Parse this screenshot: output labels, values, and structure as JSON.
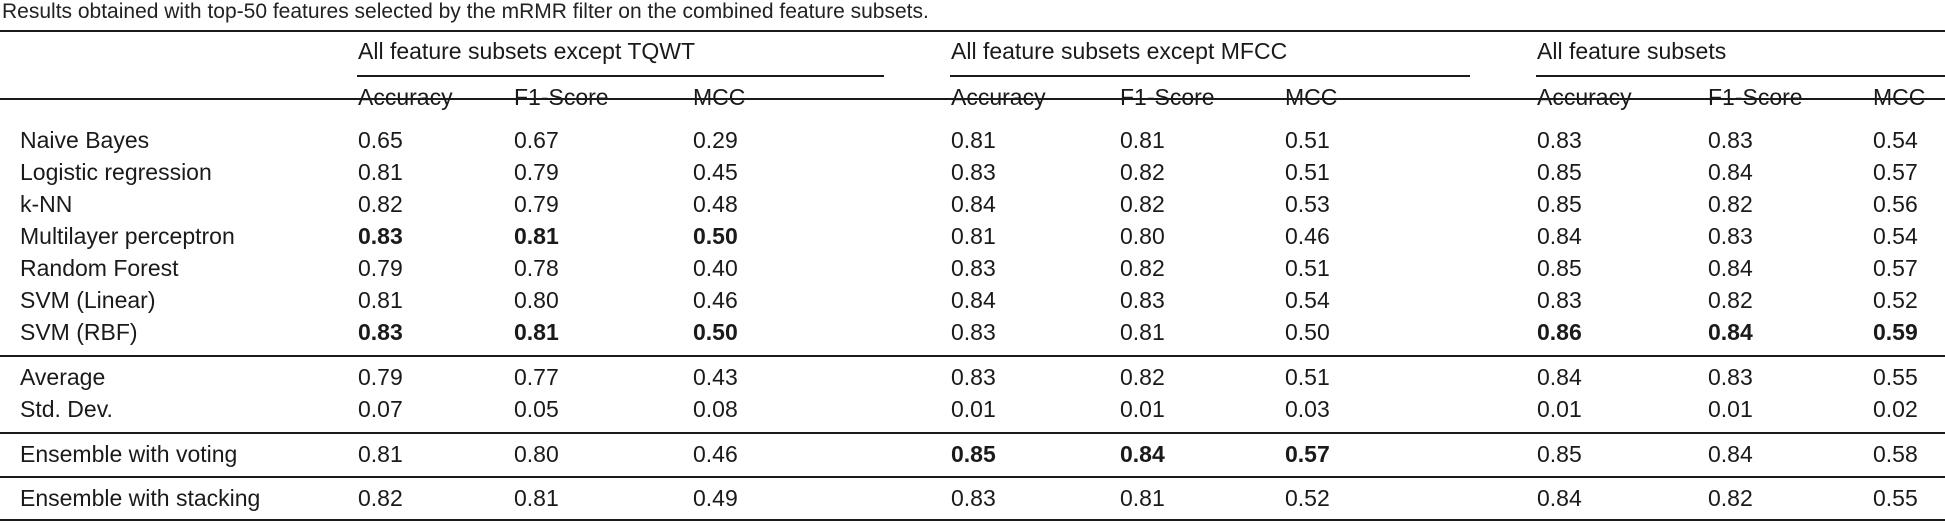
{
  "caption": "Results obtained with top-50 features selected by the mRMR filter on the combined feature subsets.",
  "groups": [
    "All feature subsets except TQWT",
    "All feature subsets except MFCC",
    "All feature subsets"
  ],
  "metrics": [
    "Accuracy",
    "F1-Score",
    "MCC"
  ],
  "rows": [
    {
      "name": "Naive Bayes",
      "v": [
        "0.65",
        "0.67",
        "0.29",
        "0.81",
        "0.81",
        "0.51",
        "0.83",
        "0.83",
        "0.54"
      ],
      "bold": []
    },
    {
      "name": "Logistic regression",
      "v": [
        "0.81",
        "0.79",
        "0.45",
        "0.83",
        "0.82",
        "0.51",
        "0.85",
        "0.84",
        "0.57"
      ],
      "bold": []
    },
    {
      "name": "k-NN",
      "v": [
        "0.82",
        "0.79",
        "0.48",
        "0.84",
        "0.82",
        "0.53",
        "0.85",
        "0.82",
        "0.56"
      ],
      "bold": []
    },
    {
      "name": "Multilayer perceptron",
      "v": [
        "0.83",
        "0.81",
        "0.50",
        "0.81",
        "0.80",
        "0.46",
        "0.84",
        "0.83",
        "0.54"
      ],
      "bold": [
        0,
        1,
        2
      ]
    },
    {
      "name": "Random Forest",
      "v": [
        "0.79",
        "0.78",
        "0.40",
        "0.83",
        "0.82",
        "0.51",
        "0.85",
        "0.84",
        "0.57"
      ],
      "bold": []
    },
    {
      "name": "SVM (Linear)",
      "v": [
        "0.81",
        "0.80",
        "0.46",
        "0.84",
        "0.83",
        "0.54",
        "0.83",
        "0.82",
        "0.52"
      ],
      "bold": []
    },
    {
      "name": "SVM (RBF)",
      "v": [
        "0.83",
        "0.81",
        "0.50",
        "0.83",
        "0.81",
        "0.50",
        "0.86",
        "0.84",
        "0.59"
      ],
      "bold": [
        0,
        1,
        2,
        6,
        7,
        8
      ]
    },
    {
      "name": "Average",
      "v": [
        "0.79",
        "0.77",
        "0.43",
        "0.83",
        "0.82",
        "0.51",
        "0.84",
        "0.83",
        "0.55"
      ],
      "bold": []
    },
    {
      "name": "Std. Dev.",
      "v": [
        "0.07",
        "0.05",
        "0.08",
        "0.01",
        "0.01",
        "0.03",
        "0.01",
        "0.01",
        "0.02"
      ],
      "bold": []
    },
    {
      "name": "Ensemble with voting",
      "v": [
        "0.81",
        "0.80",
        "0.46",
        "0.85",
        "0.84",
        "0.57",
        "0.85",
        "0.84",
        "0.58"
      ],
      "bold": [
        3,
        4,
        5
      ]
    },
    {
      "name": "Ensemble with stacking",
      "v": [
        "0.82",
        "0.81",
        "0.49",
        "0.83",
        "0.81",
        "0.52",
        "0.84",
        "0.82",
        "0.55"
      ],
      "bold": []
    }
  ]
}
